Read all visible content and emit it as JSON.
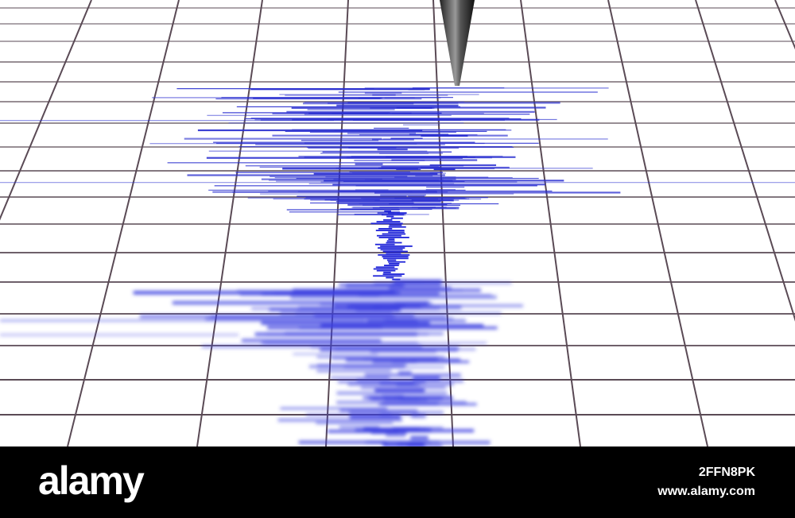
{
  "watermark": {
    "brand": "alamy",
    "image_id": "2FFN8PK",
    "url": "www.alamy.com"
  }
}
